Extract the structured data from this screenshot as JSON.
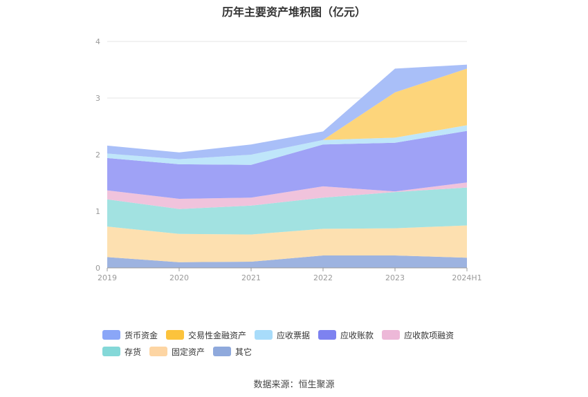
{
  "chart_data": {
    "type": "area",
    "stacked": true,
    "title": "历年主要资产堆积图（亿元）",
    "categories": [
      "2019",
      "2020",
      "2021",
      "2022",
      "2023",
      "2024H1"
    ],
    "ylim": [
      0,
      4
    ],
    "yticks": [
      "0",
      "1",
      "2",
      "3",
      "4"
    ],
    "grid": true,
    "legend_position": "bottom",
    "series": [
      {
        "name": "其它",
        "color": "#9db3e0",
        "values": [
          0.19,
          0.1,
          0.11,
          0.22,
          0.22,
          0.18
        ]
      },
      {
        "name": "固定资产",
        "color": "#fde0b0",
        "values": [
          0.54,
          0.5,
          0.48,
          0.47,
          0.48,
          0.57
        ]
      },
      {
        "name": "存货",
        "color": "#a2e2e1",
        "values": [
          0.48,
          0.44,
          0.51,
          0.55,
          0.64,
          0.67
        ]
      },
      {
        "name": "应收款项融资",
        "color": "#f0c3dc",
        "values": [
          0.16,
          0.18,
          0.14,
          0.2,
          0.01,
          0.09
        ]
      },
      {
        "name": "应收账款",
        "color": "#9fa2f6",
        "values": [
          0.57,
          0.61,
          0.58,
          0.74,
          0.86,
          0.91
        ]
      },
      {
        "name": "应收票据",
        "color": "#bfe6fa",
        "values": [
          0.08,
          0.09,
          0.18,
          0.08,
          0.09,
          0.1
        ]
      },
      {
        "name": "交易性金融资产",
        "color": "#fdd57b",
        "values": [
          0.0,
          0.0,
          0.0,
          0.0,
          0.8,
          1.0
        ]
      },
      {
        "name": "货币资金",
        "color": "#a9bff8",
        "values": [
          0.14,
          0.12,
          0.18,
          0.15,
          0.42,
          0.07
        ]
      }
    ],
    "legend_order": [
      {
        "name": "货币资金",
        "color": "#8aa6f7"
      },
      {
        "name": "交易性金融资产",
        "color": "#fcc33c"
      },
      {
        "name": "应收票据",
        "color": "#a8dcfa"
      },
      {
        "name": "应收账款",
        "color": "#7d82f0"
      },
      {
        "name": "应收款项融资",
        "color": "#edb8d8"
      },
      {
        "name": "存货",
        "color": "#84d8d8"
      },
      {
        "name": "固定资产",
        "color": "#fdd5a3"
      },
      {
        "name": "其它",
        "color": "#8fa9dc"
      }
    ]
  },
  "source": "数据来源：恒生聚源"
}
